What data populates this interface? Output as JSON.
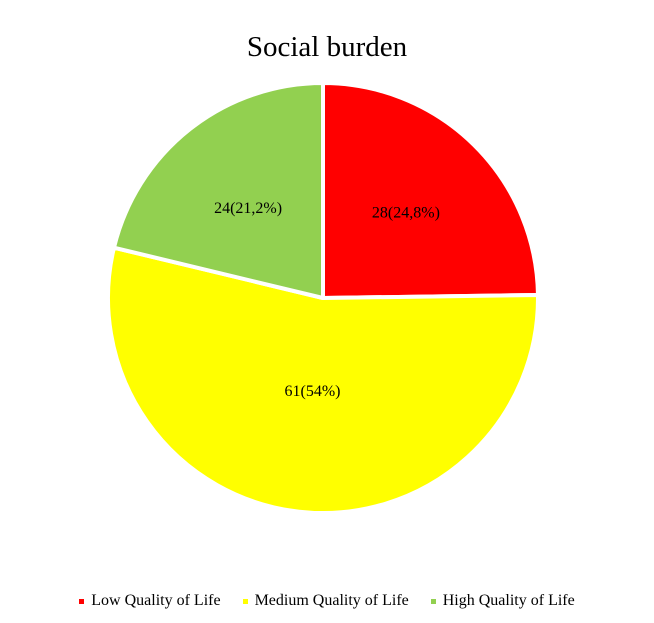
{
  "chart_data": {
    "type": "pie",
    "title": "Social burden",
    "categories": [
      "Low Quality of Life",
      "Medium Quality of Life",
      "High Quality of Life"
    ],
    "values": [
      28,
      61,
      24
    ],
    "percentages": [
      24.8,
      54,
      21.2
    ],
    "data_labels": [
      "28(24,8%)",
      "61(54%)",
      "24(21,2%)"
    ],
    "colors": [
      "#ff0000",
      "#ffff00",
      "#92d050"
    ],
    "legend_position": "bottom",
    "start_angle": "12 o'clock, clockwise"
  }
}
